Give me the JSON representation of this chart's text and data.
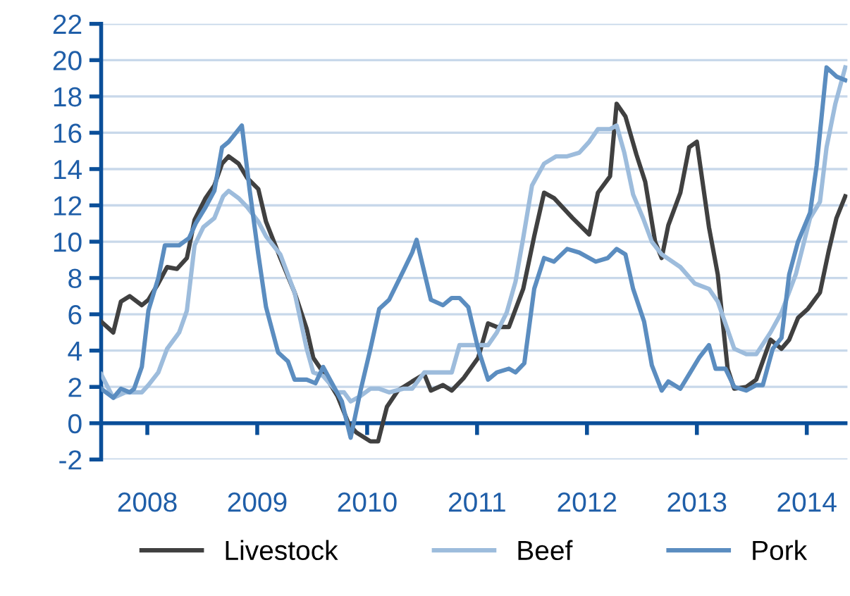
{
  "chart_data": {
    "type": "line",
    "xlim": [
      2007.58,
      2014.37
    ],
    "xticks": [
      2008,
      2009,
      2010,
      2011,
      2012,
      2013,
      2014
    ],
    "ylim": [
      -2,
      22
    ],
    "yticks": [
      -2,
      0,
      2,
      4,
      6,
      8,
      10,
      12,
      14,
      16,
      18,
      20,
      22
    ],
    "grid": "y",
    "ref_lines": [
      {
        "axis": "y",
        "value": 0,
        "color": "#0b4f99"
      }
    ],
    "legend": "bottom",
    "marker": "none",
    "line_style": "solid",
    "series": [
      {
        "name": "Livestock",
        "color": "#404040",
        "x": [
          2007.58,
          2007.69,
          2007.76,
          2007.84,
          2007.95,
          2008.01,
          2008.1,
          2008.18,
          2008.27,
          2008.36,
          2008.43,
          2008.53,
          2008.61,
          2008.68,
          2008.74,
          2008.83,
          2008.91,
          2009.01,
          2009.08,
          2009.21,
          2009.34,
          2009.45,
          2009.51,
          2009.6,
          2009.73,
          2009.83,
          2009.9,
          2010.03,
          2010.1,
          2010.18,
          2010.28,
          2010.41,
          2010.52,
          2010.58,
          2010.69,
          2010.77,
          2010.88,
          2011.01,
          2011.1,
          2011.18,
          2011.29,
          2011.42,
          2011.52,
          2011.61,
          2011.7,
          2011.87,
          2012.02,
          2012.1,
          2012.21,
          2012.27,
          2012.35,
          2012.45,
          2012.53,
          2012.62,
          2012.68,
          2012.74,
          2012.85,
          2012.93,
          2013.0,
          2013.11,
          2013.19,
          2013.28,
          2013.34,
          2013.45,
          2013.54,
          2013.67,
          2013.77,
          2013.84,
          2013.92,
          2014.01,
          2014.12,
          2014.2,
          2014.27,
          2014.35
        ],
        "values": [
          5.6,
          5.0,
          6.7,
          7.0,
          6.5,
          6.8,
          7.7,
          8.6,
          8.5,
          9.1,
          11.2,
          12.4,
          13.1,
          14.3,
          14.7,
          14.3,
          13.5,
          12.9,
          11.1,
          9.1,
          7.2,
          5.2,
          3.6,
          2.8,
          1.5,
          0,
          -0.5,
          -1.0,
          -1.0,
          0.9,
          1.8,
          2.3,
          2.7,
          1.8,
          2.1,
          1.8,
          2.5,
          3.6,
          5.5,
          5.3,
          5.3,
          7.4,
          10.3,
          12.7,
          12.4,
          11.3,
          10.4,
          12.7,
          13.6,
          17.6,
          16.9,
          14.8,
          13.3,
          10.0,
          9.1,
          10.9,
          12.7,
          15.2,
          15.5,
          10.8,
          8.2,
          3.0,
          1.9,
          2.0,
          2.4,
          4.6,
          4.1,
          4.6,
          5.8,
          6.3,
          7.2,
          9.5,
          11.3,
          12.5
        ]
      },
      {
        "name": "Beef",
        "color": "#9dbcdc",
        "x": [
          2007.58,
          2007.69,
          2007.8,
          2007.95,
          2008.01,
          2008.1,
          2008.18,
          2008.29,
          2008.36,
          2008.43,
          2008.51,
          2008.61,
          2008.69,
          2008.74,
          2008.83,
          2008.91,
          2009.01,
          2009.08,
          2009.21,
          2009.34,
          2009.45,
          2009.51,
          2009.6,
          2009.73,
          2009.79,
          2009.85,
          2009.94,
          2010.03,
          2010.11,
          2010.2,
          2010.33,
          2010.41,
          2010.52,
          2010.77,
          2010.84,
          2011.01,
          2011.1,
          2011.18,
          2011.27,
          2011.35,
          2011.42,
          2011.5,
          2011.61,
          2011.72,
          2011.82,
          2011.93,
          2012.02,
          2012.1,
          2012.21,
          2012.27,
          2012.34,
          2012.42,
          2012.51,
          2012.59,
          2012.68,
          2012.85,
          2012.98,
          2013.11,
          2013.19,
          2013.34,
          2013.45,
          2013.54,
          2013.67,
          2013.77,
          2013.9,
          2014.03,
          2014.12,
          2014.18,
          2014.26,
          2014.35
        ],
        "values": [
          2.7,
          1.4,
          1.7,
          1.7,
          2.1,
          2.8,
          4.1,
          5.0,
          6.2,
          9.8,
          10.8,
          11.3,
          12.5,
          12.8,
          12.4,
          11.9,
          11.1,
          10.3,
          9.3,
          7.2,
          4.1,
          2.8,
          2.6,
          1.7,
          1.7,
          1.2,
          1.5,
          1.9,
          1.9,
          1.7,
          1.9,
          1.9,
          2.8,
          2.8,
          4.3,
          4.3,
          4.3,
          5.0,
          6.1,
          7.8,
          10.2,
          13.1,
          14.3,
          14.7,
          14.7,
          14.9,
          15.5,
          16.2,
          16.2,
          16.4,
          14.9,
          12.6,
          11.3,
          10.0,
          9.3,
          8.6,
          7.7,
          7.4,
          6.7,
          4.1,
          3.8,
          3.8,
          5.0,
          6.1,
          8.2,
          11.3,
          12.2,
          15.2,
          17.6,
          19.6
        ]
      },
      {
        "name": "Pork",
        "color": "#5b8dc0",
        "x": [
          2007.58,
          2007.69,
          2007.76,
          2007.84,
          2007.88,
          2007.95,
          2008.01,
          2008.1,
          2008.16,
          2008.29,
          2008.38,
          2008.44,
          2008.53,
          2008.61,
          2008.68,
          2008.74,
          2008.86,
          2008.93,
          2009.01,
          2009.08,
          2009.19,
          2009.28,
          2009.34,
          2009.45,
          2009.53,
          2009.6,
          2009.68,
          2009.77,
          2009.85,
          2009.94,
          2010.03,
          2010.11,
          2010.2,
          2010.33,
          2010.41,
          2010.45,
          2010.58,
          2010.69,
          2010.77,
          2010.84,
          2010.92,
          2011.01,
          2011.1,
          2011.18,
          2011.29,
          2011.35,
          2011.43,
          2011.52,
          2011.61,
          2011.7,
          2011.82,
          2011.93,
          2012.08,
          2012.19,
          2012.27,
          2012.35,
          2012.42,
          2012.52,
          2012.59,
          2012.68,
          2012.74,
          2012.85,
          2012.94,
          2013.02,
          2013.11,
          2013.17,
          2013.26,
          2013.34,
          2013.45,
          2013.54,
          2013.6,
          2013.69,
          2013.77,
          2013.84,
          2013.92,
          2014.03,
          2014.09,
          2014.18,
          2014.27,
          2014.35
        ],
        "values": [
          1.9,
          1.4,
          1.9,
          1.7,
          1.9,
          3.1,
          6.2,
          8.0,
          9.8,
          9.8,
          10.2,
          11.0,
          11.9,
          12.8,
          15.2,
          15.5,
          16.4,
          12.9,
          9.3,
          6.4,
          3.9,
          3.4,
          2.4,
          2.4,
          2.2,
          3.1,
          2.2,
          1.2,
          -0.8,
          1.8,
          4.1,
          6.3,
          6.8,
          8.4,
          9.4,
          10.1,
          6.8,
          6.5,
          6.9,
          6.9,
          6.4,
          4.1,
          2.4,
          2.8,
          3.0,
          2.8,
          3.3,
          7.4,
          9.1,
          8.9,
          9.6,
          9.4,
          8.9,
          9.1,
          9.6,
          9.3,
          7.4,
          5.6,
          3.2,
          1.8,
          2.3,
          1.9,
          2.8,
          3.6,
          4.3,
          3.0,
          3.0,
          2.0,
          1.8,
          2.1,
          2.1,
          4.1,
          4.7,
          8.2,
          10.0,
          11.6,
          14.2,
          19.6,
          19.1,
          18.9
        ]
      }
    ]
  }
}
